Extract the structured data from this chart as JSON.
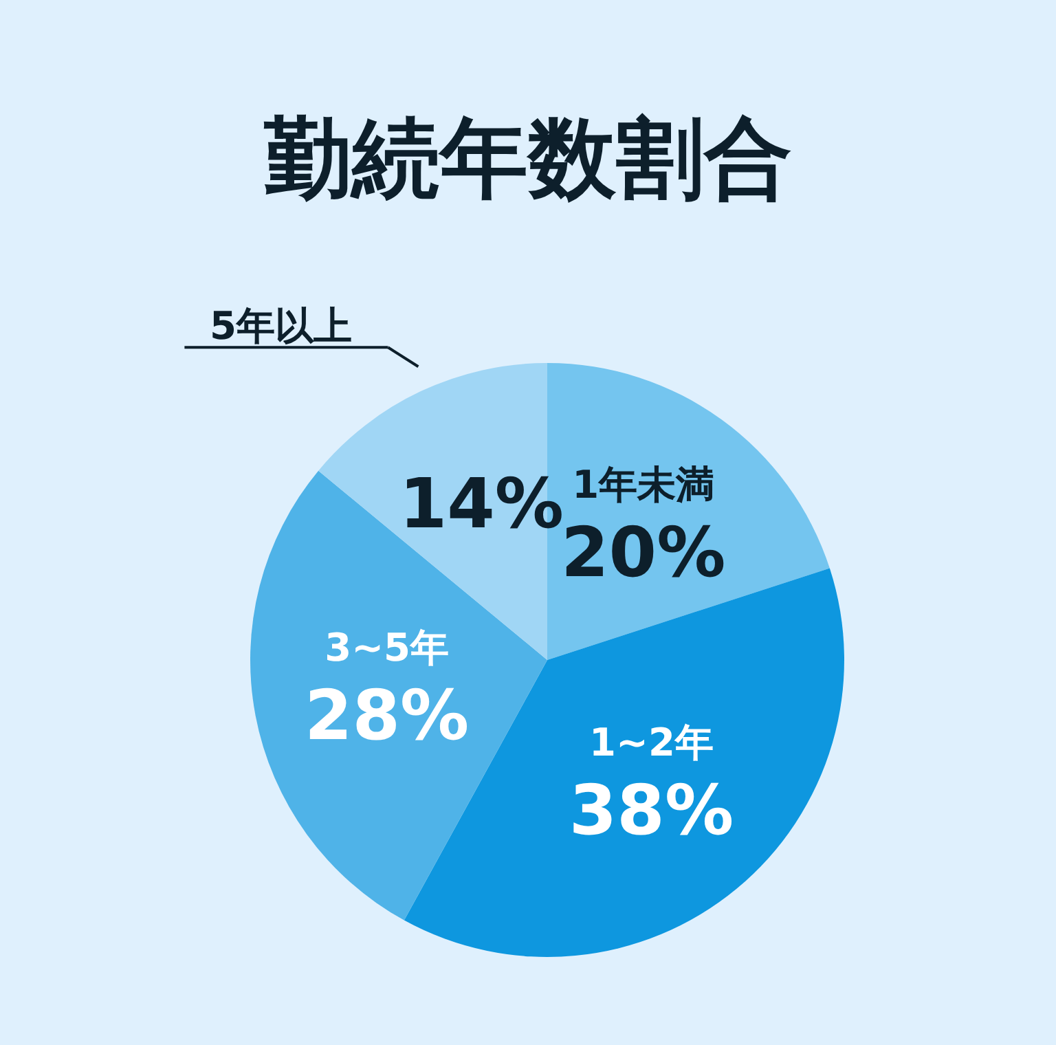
{
  "chart_data": {
    "type": "pie",
    "title": "勤続年数割合",
    "categories": [
      "1年未満",
      "1~2年",
      "3~5年",
      "5年以上"
    ],
    "values": [
      20,
      38,
      28,
      14
    ],
    "value_labels": [
      "20%",
      "38%",
      "28%",
      "14%"
    ],
    "colors": [
      "#74c5ef",
      "#0e97df",
      "#4fb3e8",
      "#a0d6f5"
    ]
  }
}
